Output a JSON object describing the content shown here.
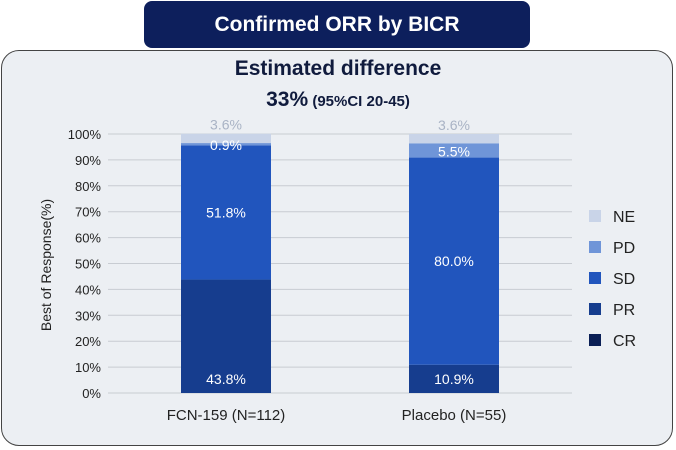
{
  "header": {
    "title": "Confirmed ORR by BICR"
  },
  "subtitle": {
    "line1": "Estimated difference",
    "value": "33%",
    "ci": " (95%CI 20-45)"
  },
  "chart_data": {
    "type": "bar",
    "stacked": true,
    "categories": [
      "FCN-159 (N=112)",
      "Placebo (N=55)"
    ],
    "ylabel": "Best of Response(%)",
    "ylim": [
      0,
      100
    ],
    "yticks": [
      "0%",
      "10%",
      "20%",
      "30%",
      "40%",
      "50%",
      "60%",
      "70%",
      "80%",
      "90%",
      "100%"
    ],
    "grid": true,
    "legend_position": "right",
    "series": [
      {
        "name": "CR",
        "color": "#0a1f55",
        "values": [
          0,
          0
        ],
        "labels": [
          "",
          ""
        ]
      },
      {
        "name": "PR",
        "color": "#163d8e",
        "values": [
          43.8,
          10.9
        ],
        "labels": [
          "43.8%",
          "10.9%"
        ]
      },
      {
        "name": "SD",
        "color": "#2155bd",
        "values": [
          51.8,
          80.0
        ],
        "labels": [
          "51.8%",
          "80.0%"
        ]
      },
      {
        "name": "PD",
        "color": "#6f95d8",
        "values": [
          0.9,
          5.5
        ],
        "labels": [
          "0.9%",
          "5.5%"
        ]
      },
      {
        "name": "NE",
        "color": "#c9d4e8",
        "values": [
          3.6,
          3.6
        ],
        "labels": [
          "3.6%",
          "3.6%"
        ]
      }
    ]
  }
}
